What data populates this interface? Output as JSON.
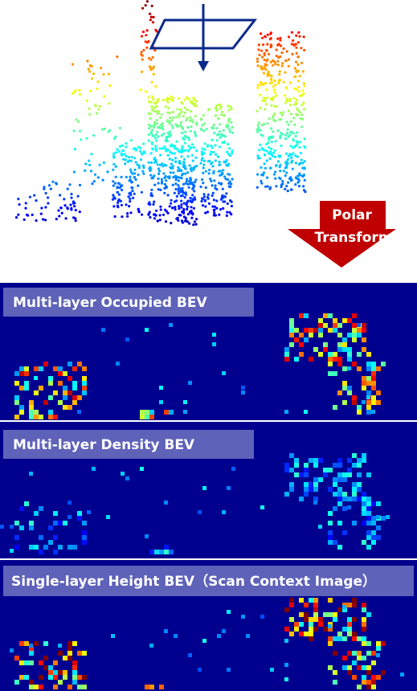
{
  "arrow": {
    "line1": "Polar",
    "line2": "Transform"
  },
  "panels": [
    {
      "label": "Multi-layer Occupied BEV"
    },
    {
      "label": "Multi-layer Density BEV"
    },
    {
      "label": "Single-layer Height BEV（Scan Context Image）"
    }
  ]
}
